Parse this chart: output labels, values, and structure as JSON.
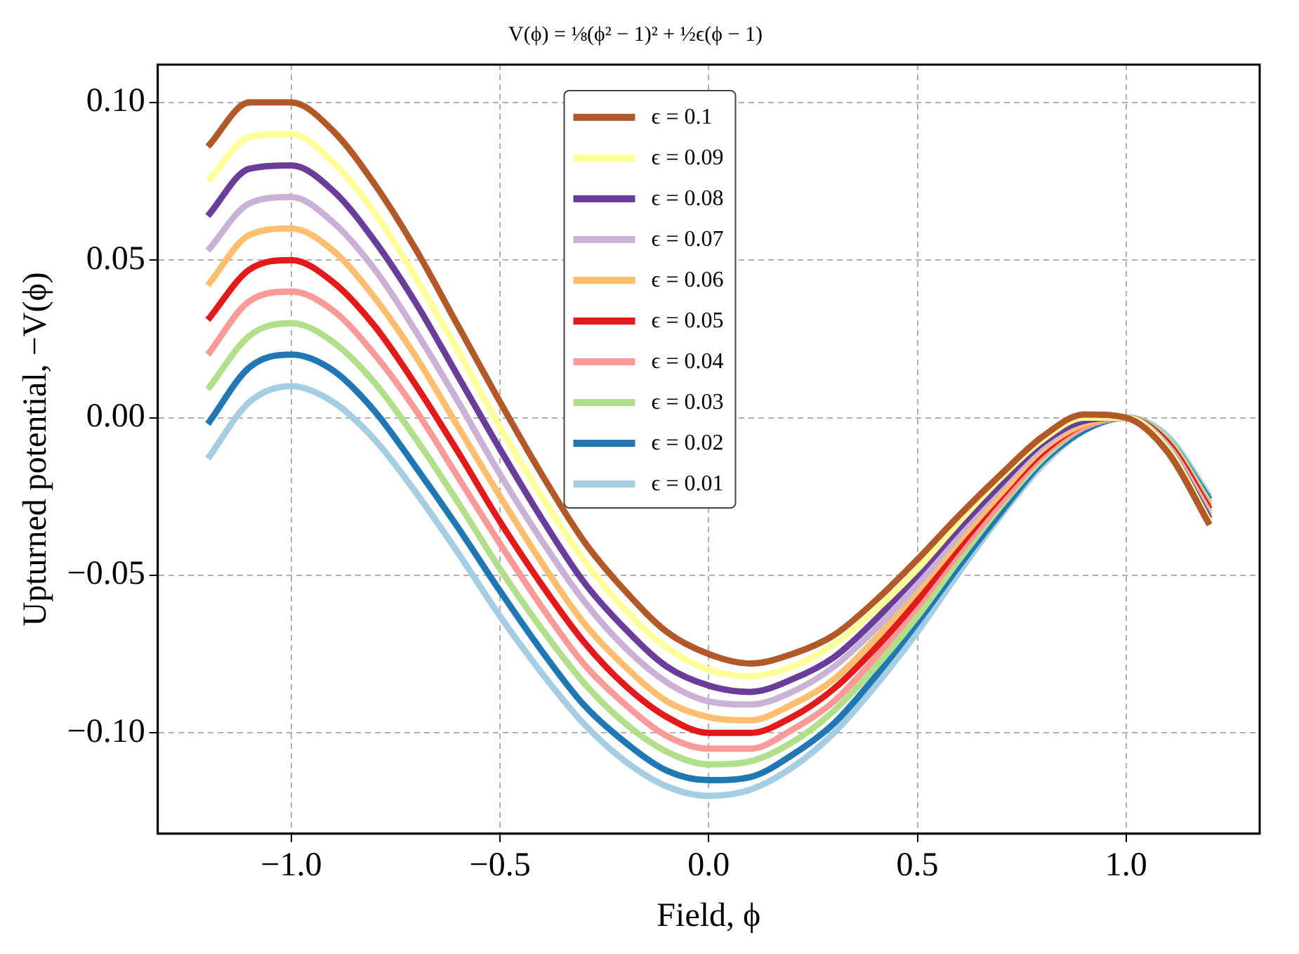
{
  "chart_data": {
    "type": "line",
    "title": "V(ϕ) = ⅛(ϕ² − 1)² + ½ϵ(ϕ − 1)",
    "xlabel": "Field, ϕ",
    "ylabel": "Upturned potential, −V(ϕ)",
    "x": [
      -1.2,
      -1.1,
      -1.0,
      -0.9,
      -0.8,
      -0.7,
      -0.6,
      -0.5,
      -0.4,
      -0.3,
      -0.2,
      -0.1,
      0,
      0.1,
      0.2,
      0.3,
      0.4,
      0.5,
      0.6,
      0.7,
      0.8,
      0.9,
      1.0,
      1.1,
      1.2
    ],
    "xlim": [
      -1.32,
      1.32
    ],
    "xticks": [
      {
        "value": -1,
        "label": "−1.0"
      },
      {
        "value": -0.5,
        "label": "−0.5"
      },
      {
        "value": 0,
        "label": "0.0"
      },
      {
        "value": 0.5,
        "label": "0.5"
      },
      {
        "value": 1,
        "label": "1.0"
      }
    ],
    "ylim": [
      -0.132,
      0.112
    ],
    "yticks": [
      {
        "value": -0.1,
        "label": "−0.10"
      },
      {
        "value": -0.05,
        "label": "−0.05"
      },
      {
        "value": 0,
        "label": "0.00"
      },
      {
        "value": 0.05,
        "label": "0.05"
      },
      {
        "value": 0.1,
        "label": "0.10"
      }
    ],
    "grid": true,
    "legend": "top",
    "marker": "none",
    "line_style": "solid",
    "series": [
      {
        "name": "ϵ = 0.1",
        "color": "#b15928",
        "values": [
          0.086,
          0.1,
          0.1,
          0.091,
          0.074,
          0.053,
          0.029,
          0.005,
          -0.018,
          -0.039,
          -0.055,
          -0.068,
          -0.075,
          -0.078,
          -0.075,
          -0.069,
          -0.058,
          -0.045,
          -0.031,
          -0.018,
          -0.006,
          0.001,
          0,
          -0.011,
          -0.034
        ]
      },
      {
        "name": "ϵ = 0.09",
        "color": "#ffff99",
        "values": [
          0.075,
          0.089,
          0.09,
          0.081,
          0.065,
          0.044,
          0.021,
          -0.003,
          -0.025,
          -0.045,
          -0.061,
          -0.073,
          -0.08,
          -0.082,
          -0.079,
          -0.072,
          -0.061,
          -0.048,
          -0.033,
          -0.019,
          -0.007,
          0,
          0,
          -0.01,
          -0.033
        ]
      },
      {
        "name": "ϵ = 0.08",
        "color": "#6a3d9a",
        "values": [
          0.064,
          0.079,
          0.08,
          0.072,
          0.056,
          0.036,
          0.013,
          -0.01,
          -0.032,
          -0.052,
          -0.067,
          -0.079,
          -0.085,
          -0.087,
          -0.083,
          -0.076,
          -0.064,
          -0.05,
          -0.035,
          -0.021,
          -0.008,
          -0.001,
          0,
          -0.01,
          -0.032
        ]
      },
      {
        "name": "ϵ = 0.07",
        "color": "#cab2d6",
        "values": [
          0.053,
          0.068,
          0.07,
          0.062,
          0.047,
          0.027,
          0.005,
          -0.018,
          -0.039,
          -0.058,
          -0.073,
          -0.084,
          -0.09,
          -0.091,
          -0.087,
          -0.079,
          -0.067,
          -0.053,
          -0.037,
          -0.022,
          -0.009,
          -0.001,
          0,
          -0.009,
          -0.031
        ]
      },
      {
        "name": "ϵ = 0.06",
        "color": "#fdbf6f",
        "values": [
          0.042,
          0.058,
          0.06,
          0.053,
          0.038,
          0.019,
          -0.003,
          -0.025,
          -0.046,
          -0.065,
          -0.079,
          -0.09,
          -0.095,
          -0.096,
          -0.091,
          -0.083,
          -0.07,
          -0.055,
          -0.039,
          -0.024,
          -0.01,
          -0.002,
          0,
          -0.009,
          -0.03
        ]
      },
      {
        "name": "ϵ = 0.05",
        "color": "#e31a1c",
        "values": [
          0.031,
          0.047,
          0.05,
          0.043,
          0.029,
          0.01,
          -0.011,
          -0.033,
          -0.053,
          -0.071,
          -0.085,
          -0.095,
          -0.1,
          -0.1,
          -0.095,
          -0.086,
          -0.073,
          -0.058,
          -0.041,
          -0.025,
          -0.011,
          -0.002,
          0,
          -0.008,
          -0.029
        ]
      },
      {
        "name": "ϵ = 0.04",
        "color": "#fb9a99",
        "values": [
          0.02,
          0.037,
          0.04,
          0.034,
          0.02,
          0.002,
          -0.019,
          -0.04,
          -0.06,
          -0.078,
          -0.091,
          -0.101,
          -0.105,
          -0.105,
          -0.099,
          -0.09,
          -0.076,
          -0.06,
          -0.043,
          -0.027,
          -0.012,
          -0.003,
          0,
          -0.008,
          -0.028
        ]
      },
      {
        "name": "ϵ = 0.03",
        "color": "#b2df8a",
        "values": [
          0.009,
          0.026,
          0.03,
          0.024,
          0.011,
          -0.007,
          -0.027,
          -0.048,
          -0.067,
          -0.084,
          -0.097,
          -0.106,
          -0.11,
          -0.109,
          -0.103,
          -0.093,
          -0.079,
          -0.063,
          -0.045,
          -0.028,
          -0.013,
          -0.003,
          0,
          -0.007,
          -0.027
        ]
      },
      {
        "name": "ϵ = 0.02",
        "color": "#1f78b4",
        "values": [
          -0.002,
          0.016,
          0.02,
          0.015,
          0.002,
          -0.016,
          -0.035,
          -0.055,
          -0.074,
          -0.091,
          -0.103,
          -0.112,
          -0.115,
          -0.114,
          -0.107,
          -0.097,
          -0.082,
          -0.065,
          -0.047,
          -0.03,
          -0.014,
          -0.004,
          0,
          -0.007,
          -0.026
        ]
      },
      {
        "name": "ϵ = 0.01",
        "color": "#a6cee3",
        "values": [
          -0.013,
          0.005,
          0.01,
          0.005,
          -0.007,
          -0.024,
          -0.043,
          -0.063,
          -0.081,
          -0.097,
          -0.109,
          -0.117,
          -0.12,
          -0.118,
          -0.111,
          -0.1,
          -0.085,
          -0.068,
          -0.049,
          -0.031,
          -0.015,
          -0.004,
          0,
          -0.006,
          -0.025
        ]
      }
    ]
  }
}
